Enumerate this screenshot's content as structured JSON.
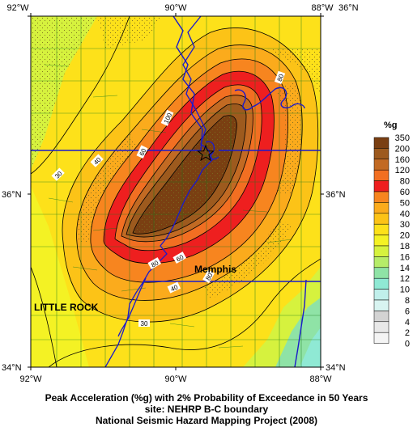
{
  "map": {
    "lon_labels": [
      "92°W",
      "90°W",
      "88°W"
    ],
    "lat_labels": [
      "36°N",
      "36°N",
      "34°N"
    ],
    "places": [
      "Memphis",
      "LITTLE ROCK"
    ],
    "contour_labels": [
      "80",
      "100",
      "60",
      "40",
      "30",
      "80",
      "60",
      "40",
      "30",
      "80"
    ],
    "epicenter_icon": "star-icon"
  },
  "legend": {
    "unit": "%g",
    "levels": [
      "350",
      "200",
      "160",
      "120",
      "80",
      "60",
      "50",
      "40",
      "30",
      "20",
      "18",
      "16",
      "14",
      "12",
      "10",
      "8",
      "6",
      "4",
      "2",
      "0"
    ],
    "colors": [
      "#7a3f12",
      "#9d5a1e",
      "#c26a23",
      "#f26f22",
      "#ee1f1f",
      "#f7851f",
      "#fbab1c",
      "#fcc317",
      "#fde11a",
      "#f4f224",
      "#d6f23e",
      "#b6ec69",
      "#8fe3a6",
      "#8fe9d4",
      "#c0efeb",
      "#d8f4f1",
      "#d3d3d3",
      "#e8e8e8",
      "#f4f4f4",
      "#ffffff"
    ]
  },
  "caption": {
    "line1": "Peak Acceleration (%g) with 2% Probability of Exceedance in 50 Years",
    "line2": "site: NEHRP B-C boundary",
    "line3": "National Seismic Hazard Mapping Project (2008)"
  }
}
